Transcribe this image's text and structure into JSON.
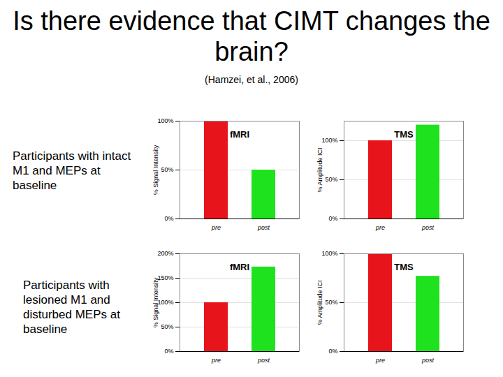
{
  "title": "Is there evidence that CIMT changes the brain?",
  "subtitle": "(Hamzei, et al., 2006)",
  "row_labels": [
    "Participants with intact M1 and MEPs at baseline",
    "Participants with lesioned M1 and disturbed MEPs at baseline"
  ],
  "chart_data": [
    {
      "type": "bar",
      "title": "fMRI",
      "y_label": "% Signal Intensity",
      "categories": [
        "pre",
        "post"
      ],
      "values": [
        100,
        50
      ],
      "colors": [
        "#e8141b",
        "#1ee21e"
      ],
      "ylim": [
        0,
        100
      ],
      "yticks": [
        {
          "value": 0,
          "label": "0%"
        },
        {
          "value": 50,
          "label": "50%"
        },
        {
          "value": 100,
          "label": "100%"
        }
      ]
    },
    {
      "type": "bar",
      "title": "TMS",
      "y_label": "% Amplitude ICI",
      "categories": [
        "pre",
        "post"
      ],
      "values": [
        100,
        120
      ],
      "colors": [
        "#e8141b",
        "#1ee21e"
      ],
      "ylim": [
        0,
        125
      ],
      "yticks": [
        {
          "value": 0,
          "label": "0%"
        },
        {
          "value": 50,
          "label": "50%"
        },
        {
          "value": 100,
          "label": "100%"
        }
      ]
    },
    {
      "type": "bar",
      "title": "fMRI",
      "y_label": "% Signal Intensity",
      "categories": [
        "pre",
        "post"
      ],
      "values": [
        100,
        173
      ],
      "colors": [
        "#e8141b",
        "#1ee21e"
      ],
      "ylim": [
        0,
        200
      ],
      "yticks": [
        {
          "value": 0,
          "label": "0%"
        },
        {
          "value": 50,
          "label": "50%"
        },
        {
          "value": 100,
          "label": "100%"
        },
        {
          "value": 150,
          "label": "150%"
        },
        {
          "value": 200,
          "label": "200%"
        }
      ]
    },
    {
      "type": "bar",
      "title": "TMS",
      "y_label": "% Amplitude ICI",
      "categories": [
        "pre",
        "post"
      ],
      "values": [
        100,
        77
      ],
      "colors": [
        "#e8141b",
        "#1ee21e"
      ],
      "ylim": [
        0,
        100
      ],
      "yticks": [
        {
          "value": 0,
          "label": "0%"
        },
        {
          "value": 50,
          "label": "50%"
        },
        {
          "value": 100,
          "label": "100%"
        }
      ]
    }
  ]
}
